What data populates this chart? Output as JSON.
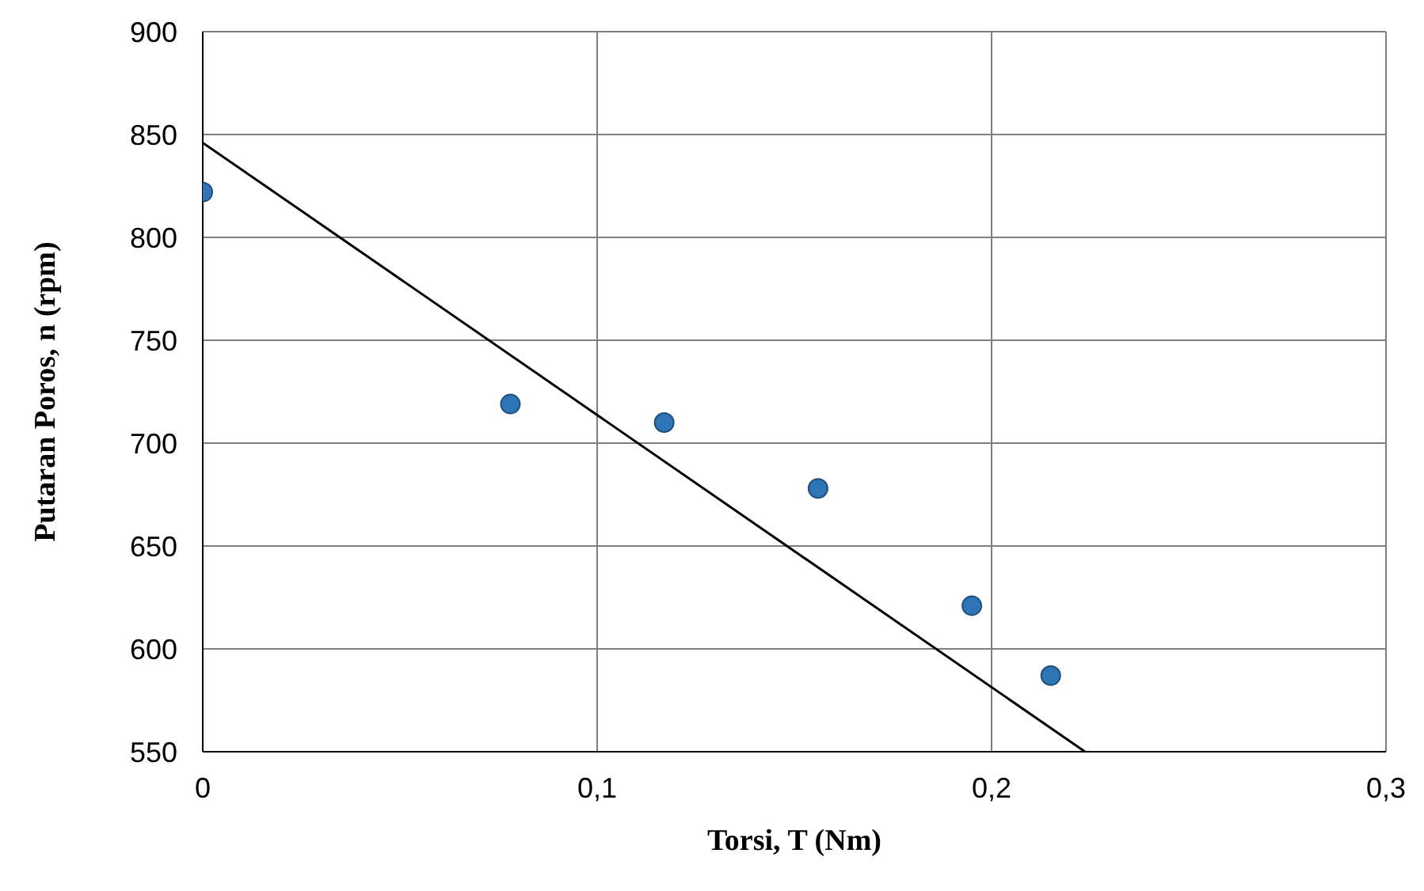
{
  "chart_data": {
    "type": "scatter",
    "xlabel": "Torsi, T (Nm)",
    "ylabel": "Putaran Poros, n (rpm)",
    "xlim": [
      0,
      0.3
    ],
    "xticks": [
      0,
      {
        "value": 0.1,
        "label": "0,1"
      },
      {
        "value": 0.2,
        "label": "0,2"
      },
      {
        "value": 0.3,
        "label": "0,3"
      }
    ],
    "ylim": [
      550,
      900
    ],
    "yticks": [
      550,
      600,
      650,
      700,
      750,
      800,
      850,
      900
    ],
    "grid": true,
    "marker": "circle",
    "series": [
      {
        "color": "#2e75b6",
        "x": [
          0,
          0.078,
          0.117,
          0.156,
          0.195,
          0.215
        ],
        "values": [
          822,
          719,
          710,
          678,
          621,
          587
        ]
      },
      {
        "type": "line",
        "color": "#000000",
        "marker": "none",
        "x": [
          0,
          0.2237
        ],
        "values": [
          846,
          550
        ]
      }
    ]
  }
}
